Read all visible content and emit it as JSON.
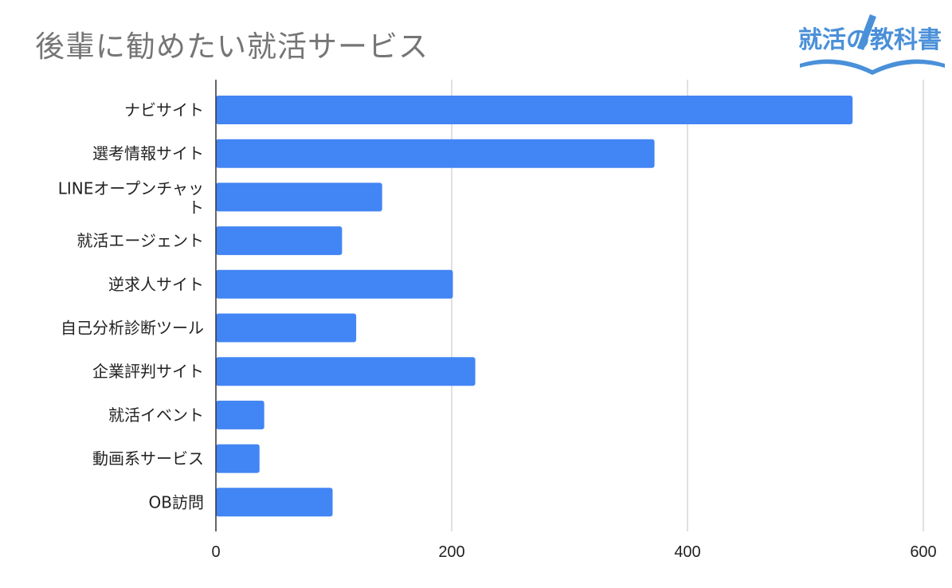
{
  "brand": {
    "logo_text": "就活の教科書",
    "accent": "#4a90d9"
  },
  "chart_data": {
    "type": "bar",
    "orientation": "horizontal",
    "title": "後輩に勧めたい就活サービス",
    "categories": [
      "ナビサイト",
      "選考情報サイト",
      "LINEオープンチャット",
      "就活エージェント",
      "逆求人サイト",
      "自己分析診断ツール",
      "企業評判サイト",
      "就活イベント",
      "動画系サービス",
      "OB訪問"
    ],
    "values": [
      540,
      372,
      141,
      107,
      201,
      119,
      220,
      41,
      37,
      99
    ],
    "xlim": [
      0,
      600
    ],
    "xticks": [
      0,
      200,
      400,
      600
    ],
    "grid": true,
    "bar_color": "#4285f4"
  }
}
